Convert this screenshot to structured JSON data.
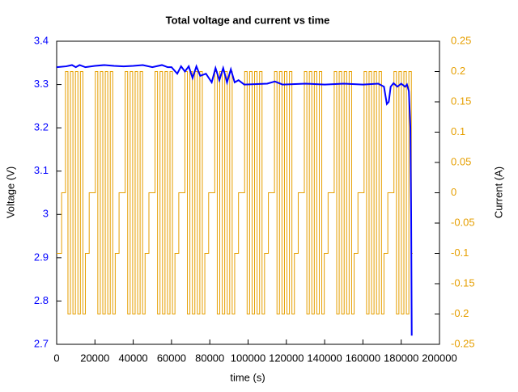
{
  "chart_data": {
    "type": "line",
    "title": "Total voltage and current vs time",
    "xlabel": "time (s)",
    "ylabel": "Voltage (V)",
    "y2label": "Current (A)",
    "xlim": [
      0,
      200000
    ],
    "xticks": [
      0,
      20000,
      40000,
      60000,
      80000,
      100000,
      120000,
      140000,
      160000,
      180000,
      200000
    ],
    "ylim": [
      2.7,
      3.4
    ],
    "yticks": [
      2.7,
      2.8,
      2.9,
      3,
      3.1,
      3.2,
      3.3,
      3.4
    ],
    "y2lim": [
      -0.25,
      0.25
    ],
    "y2ticks": [
      -0.25,
      -0.2,
      -0.15,
      -0.1,
      -0.05,
      0,
      0.05,
      0.1,
      0.15,
      0.2,
      0.25
    ],
    "ycolor": "#0000ff",
    "y2color": "#e69f00",
    "series": [
      {
        "color": "#e69f00",
        "axis": "y2",
        "step": "post",
        "width": 1,
        "x": [
          0,
          2600,
          4600,
          5900,
          7200,
          8500,
          9800,
          11100,
          12400,
          13700,
          15000,
          17000,
          20200,
          21500,
          22800,
          24100,
          25400,
          26700,
          28000,
          29300,
          30600,
          32600,
          35800,
          37100,
          38400,
          39700,
          41000,
          42300,
          43600,
          44900,
          46200,
          48200,
          51400,
          52700,
          54000,
          55300,
          56600,
          57900,
          59200,
          60500,
          61800,
          63800,
          67000,
          68300,
          69600,
          70900,
          72200,
          73500,
          74800,
          76100,
          77400,
          79400,
          82600,
          83900,
          85200,
          86500,
          87800,
          89100,
          90400,
          91700,
          93000,
          95000,
          98200,
          99500,
          100800,
          102100,
          103400,
          104700,
          106000,
          107300,
          108600,
          110600,
          113800,
          115100,
          116400,
          117700,
          119000,
          120300,
          121600,
          122900,
          124200,
          126200,
          129400,
          130700,
          132000,
          133300,
          134600,
          135900,
          137200,
          138500,
          139800,
          141800,
          145000,
          146300,
          147600,
          148900,
          150200,
          151500,
          152800,
          154100,
          155400,
          157400,
          160600,
          161900,
          163200,
          164500,
          165800,
          167100,
          168400,
          169700,
          171000,
          173000,
          176200,
          177500,
          178800,
          180100,
          181400,
          182700,
          184000,
          185300,
          186000
        ],
        "values": [
          -0.1,
          0,
          0.2,
          -0.2,
          0.2,
          -0.2,
          0.2,
          -0.2,
          0.2,
          -0.2,
          -0.1,
          0,
          0.2,
          -0.2,
          0.2,
          -0.2,
          0.2,
          -0.2,
          0.2,
          -0.2,
          -0.1,
          0,
          0.2,
          -0.2,
          0.2,
          -0.2,
          0.2,
          -0.2,
          0.2,
          -0.2,
          -0.1,
          0,
          0.2,
          -0.2,
          0.2,
          -0.2,
          0.2,
          -0.2,
          0.2,
          -0.2,
          -0.1,
          0,
          0.2,
          -0.2,
          0.2,
          -0.2,
          0.2,
          -0.2,
          0.2,
          -0.2,
          -0.1,
          0,
          0.2,
          -0.2,
          0.2,
          -0.2,
          0.2,
          -0.2,
          0.2,
          -0.2,
          -0.1,
          0,
          0.2,
          -0.2,
          0.2,
          -0.2,
          0.2,
          -0.2,
          0.2,
          -0.2,
          -0.1,
          0,
          0.2,
          -0.2,
          0.2,
          -0.2,
          0.2,
          -0.2,
          0.2,
          -0.2,
          -0.1,
          0,
          0.2,
          -0.2,
          0.2,
          -0.2,
          0.2,
          -0.2,
          0.2,
          -0.2,
          -0.1,
          0,
          0.2,
          -0.2,
          0.2,
          -0.2,
          0.2,
          -0.2,
          0.2,
          -0.2,
          -0.1,
          0,
          0.2,
          -0.2,
          0.2,
          -0.2,
          0.2,
          -0.2,
          0.2,
          -0.2,
          -0.1,
          0,
          0.2,
          -0.2,
          0.2,
          -0.2,
          0.2,
          -0.2,
          0.2,
          -0.1,
          -0.1
        ]
      },
      {
        "color": "#0000ff",
        "axis": "y",
        "width": 2,
        "x": [
          0,
          5000,
          8000,
          10000,
          12000,
          15000,
          20000,
          25000,
          30000,
          35000,
          40000,
          45000,
          50000,
          55000,
          58000,
          60000,
          63000,
          65000,
          67000,
          69000,
          71000,
          73000,
          75000,
          78000,
          81000,
          83000,
          85000,
          87000,
          89000,
          91000,
          93000,
          95000,
          98000,
          110000,
          114000,
          118000,
          130000,
          140000,
          150000,
          160000,
          168000,
          171000,
          172500,
          173500,
          174500,
          176000,
          178000,
          180000,
          182000,
          183000,
          184000,
          184800,
          185200,
          185500
        ],
        "values": [
          3.34,
          3.342,
          3.345,
          3.34,
          3.345,
          3.34,
          3.343,
          3.345,
          3.343,
          3.342,
          3.343,
          3.345,
          3.34,
          3.345,
          3.34,
          3.34,
          3.325,
          3.342,
          3.33,
          3.342,
          3.315,
          3.342,
          3.32,
          3.325,
          3.305,
          3.338,
          3.31,
          3.338,
          3.305,
          3.335,
          3.305,
          3.31,
          3.3,
          3.302,
          3.307,
          3.3,
          3.302,
          3.3,
          3.302,
          3.3,
          3.302,
          3.295,
          3.255,
          3.26,
          3.295,
          3.303,
          3.295,
          3.302,
          3.295,
          3.3,
          3.285,
          3.2,
          3.0,
          2.72
        ]
      }
    ]
  }
}
